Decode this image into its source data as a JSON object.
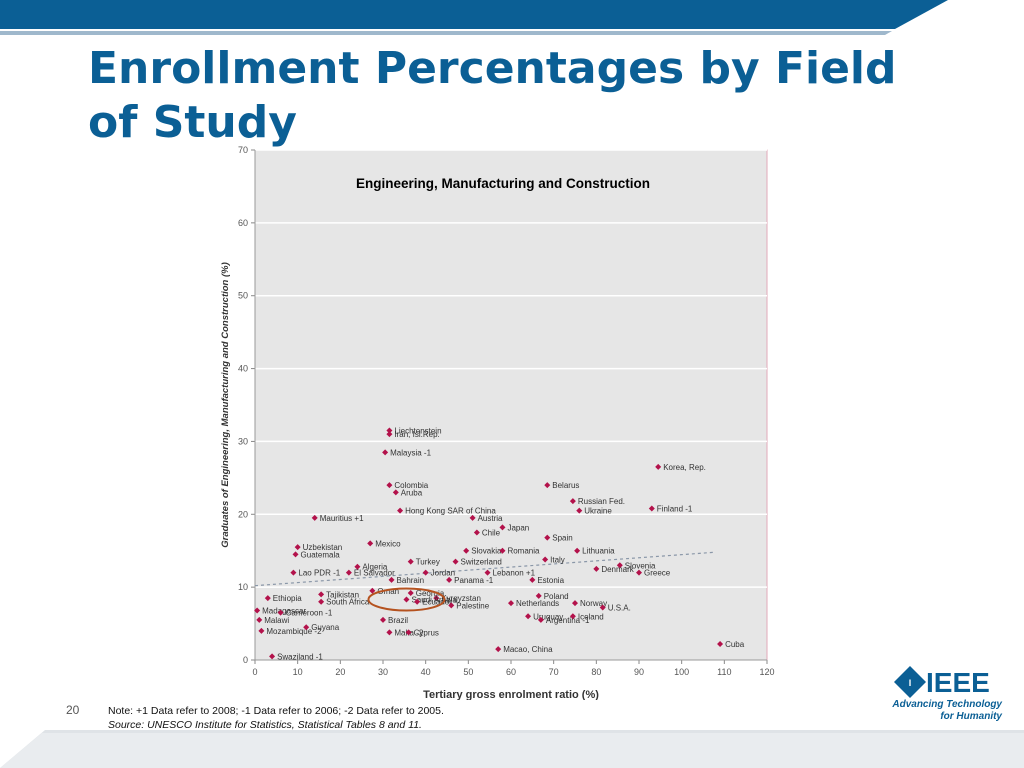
{
  "slide": {
    "title": "Enrollment Percentages by Field of Study",
    "slide_number": "20",
    "note": "Note: +1 Data refer to 2008; -1 Data refer to 2006; -2 Data refer to 2005.",
    "source": "Source: UNESCO Institute for Statistics, Statistical Tables 8 and 11.",
    "logo": {
      "name": "IEEE",
      "tagline_1": "Advancing Technology",
      "tagline_2": "for Humanity"
    },
    "colors": {
      "brand_blue": "#0b5f95",
      "point": "#b3124b",
      "trend": "#8a97a8",
      "highlight_ring": "#b5521f",
      "plot_bg": "#e6e6e6"
    }
  },
  "chart_data": {
    "type": "scatter",
    "title": "Engineering, Manufacturing and Construction",
    "xlabel": "Tertiary gross enrolment ratio (%)",
    "ylabel": "Graduates of Engineering, Manufacturing and Construction (%)",
    "xlim": [
      0,
      120
    ],
    "ylim": [
      0,
      70
    ],
    "xticks": [
      0,
      10,
      20,
      30,
      40,
      50,
      60,
      70,
      80,
      90,
      100,
      110,
      120
    ],
    "yticks": [
      0,
      10,
      20,
      30,
      40,
      50,
      60,
      70
    ],
    "grid": true,
    "trendline": {
      "x": [
        0,
        108
      ],
      "y": [
        10.2,
        14.8
      ]
    },
    "highlight": {
      "label": "Saudi Arabia",
      "x": 35.5,
      "y": 8.3
    },
    "points": [
      {
        "label": "Liechtenstein",
        "x": 31.5,
        "y": 31.5
      },
      {
        "label": "Iran, Isl.Rep.",
        "x": 31.5,
        "y": 31.0
      },
      {
        "label": "Malaysia -1",
        "x": 30.5,
        "y": 28.5
      },
      {
        "label": "Korea, Rep.",
        "x": 94.5,
        "y": 26.5
      },
      {
        "label": "Colombia",
        "x": 31.5,
        "y": 24.0
      },
      {
        "label": "Aruba",
        "x": 33.0,
        "y": 23.0
      },
      {
        "label": "Belarus",
        "x": 68.5,
        "y": 24.0
      },
      {
        "label": "Russian Fed.",
        "x": 74.5,
        "y": 21.8
      },
      {
        "label": "Ukraine",
        "x": 76.0,
        "y": 20.5
      },
      {
        "label": "Finland -1",
        "x": 93.0,
        "y": 20.8
      },
      {
        "label": "Austria",
        "x": 51.0,
        "y": 19.5
      },
      {
        "label": "Mauritius +1",
        "x": 14.0,
        "y": 19.5
      },
      {
        "label": "Hong Kong SAR of China",
        "x": 34.0,
        "y": 20.5
      },
      {
        "label": "Japan",
        "x": 58.0,
        "y": 18.2
      },
      {
        "label": "Chile",
        "x": 52.0,
        "y": 17.5
      },
      {
        "label": "Spain",
        "x": 68.5,
        "y": 16.8
      },
      {
        "label": "Uzbekistan",
        "x": 10.0,
        "y": 15.5
      },
      {
        "label": "Mexico",
        "x": 27.0,
        "y": 16.0
      },
      {
        "label": "Slovakia",
        "x": 49.5,
        "y": 15.0
      },
      {
        "label": "Romania",
        "x": 58.0,
        "y": 15.0
      },
      {
        "label": "Lithuania",
        "x": 75.5,
        "y": 15.0
      },
      {
        "label": "Guatemala",
        "x": 9.5,
        "y": 14.5
      },
      {
        "label": "Algeria",
        "x": 24.0,
        "y": 12.8
      },
      {
        "label": "Turkey",
        "x": 36.5,
        "y": 13.5
      },
      {
        "label": "Switzerland",
        "x": 47.0,
        "y": 13.5
      },
      {
        "label": "Italy",
        "x": 68.0,
        "y": 13.8
      },
      {
        "label": "Slovenia",
        "x": 85.5,
        "y": 13.0
      },
      {
        "label": "Lao PDR -1",
        "x": 9.0,
        "y": 12.0
      },
      {
        "label": "El Salvador",
        "x": 22.0,
        "y": 12.0
      },
      {
        "label": "Jordan",
        "x": 40.0,
        "y": 12.0
      },
      {
        "label": "Lebanon +1",
        "x": 54.5,
        "y": 12.0
      },
      {
        "label": "Denmark",
        "x": 80.0,
        "y": 12.5
      },
      {
        "label": "Greece",
        "x": 90.0,
        "y": 12.0
      },
      {
        "label": "Bahrain",
        "x": 32.0,
        "y": 11.0
      },
      {
        "label": "Panama -1",
        "x": 45.5,
        "y": 11.0
      },
      {
        "label": "Estonia",
        "x": 65.0,
        "y": 11.0
      },
      {
        "label": "Ethiopia",
        "x": 3.0,
        "y": 8.5
      },
      {
        "label": "Tajikistan",
        "x": 15.5,
        "y": 9.0
      },
      {
        "label": "Oman",
        "x": 27.5,
        "y": 9.5
      },
      {
        "label": "Georgia",
        "x": 36.5,
        "y": 9.2
      },
      {
        "label": "Kyrgyzstan",
        "x": 42.5,
        "y": 8.5
      },
      {
        "label": "Poland",
        "x": 66.5,
        "y": 8.8
      },
      {
        "label": "South Africa",
        "x": 15.5,
        "y": 8.0
      },
      {
        "label": "Saudi Arabia",
        "x": 35.5,
        "y": 8.3
      },
      {
        "label": "Ecuador",
        "x": 38.0,
        "y": 8.0
      },
      {
        "label": "Palestine",
        "x": 46.0,
        "y": 7.5
      },
      {
        "label": "Netherlands",
        "x": 60.0,
        "y": 7.8
      },
      {
        "label": "Norway",
        "x": 75.0,
        "y": 7.8
      },
      {
        "label": "U.S.A.",
        "x": 81.5,
        "y": 7.2
      },
      {
        "label": "Madagascar",
        "x": 0.5,
        "y": 6.8
      },
      {
        "label": "Cameroon -1",
        "x": 6.0,
        "y": 6.5
      },
      {
        "label": "Malawi",
        "x": 1.0,
        "y": 5.5
      },
      {
        "label": "Brazil",
        "x": 30.0,
        "y": 5.5
      },
      {
        "label": "Uruguay",
        "x": 64.0,
        "y": 6.0
      },
      {
        "label": "Argentina -1",
        "x": 67.0,
        "y": 5.5
      },
      {
        "label": "Iceland",
        "x": 74.5,
        "y": 6.0
      },
      {
        "label": "Mozambique -2",
        "x": 1.5,
        "y": 4.0
      },
      {
        "label": "Guyana",
        "x": 12.0,
        "y": 4.5
      },
      {
        "label": "Malta -2",
        "x": 31.5,
        "y": 3.8
      },
      {
        "label": "Cyprus",
        "x": 36.0,
        "y": 3.8
      },
      {
        "label": "Macao, China",
        "x": 57.0,
        "y": 1.5
      },
      {
        "label": "Cuba",
        "x": 109.0,
        "y": 2.2
      },
      {
        "label": "Swaziland -1",
        "x": 4.0,
        "y": 0.5
      }
    ]
  }
}
